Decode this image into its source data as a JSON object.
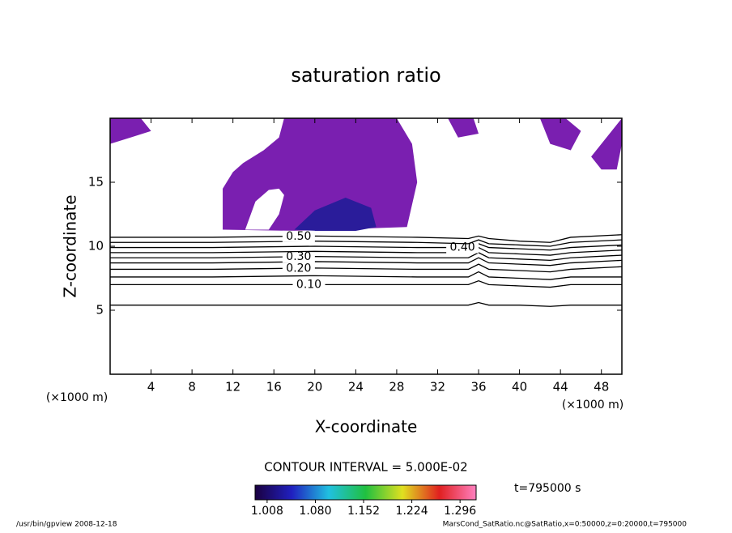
{
  "chart_data": {
    "type": "contour",
    "title": "saturation ratio",
    "xlabel": "X-coordinate",
    "ylabel": "Z-coordinate",
    "x_unit": "(×1000 m)",
    "y_unit": "(×1000 m)",
    "xlim": [
      0,
      50
    ],
    "ylim": [
      0,
      20
    ],
    "xticks": [
      4,
      8,
      12,
      16,
      20,
      24,
      28,
      32,
      36,
      40,
      44,
      48
    ],
    "yticks": [
      5,
      10,
      15
    ],
    "line_color": "#000000",
    "contours": [
      {
        "level": 0.05,
        "x": [
          0,
          10,
          20,
          30,
          35,
          36,
          37,
          40,
          43,
          45,
          50
        ],
        "z": [
          5.4,
          5.4,
          5.4,
          5.4,
          5.4,
          5.6,
          5.4,
          5.4,
          5.3,
          5.4,
          5.4
        ]
      },
      {
        "level": 0.1,
        "label": "0.10",
        "label_x": 18,
        "x": [
          0,
          10,
          20,
          30,
          35,
          36,
          37,
          40,
          43,
          45,
          50
        ],
        "z": [
          7.0,
          7.0,
          7.0,
          7.0,
          7.0,
          7.3,
          7.0,
          6.9,
          6.8,
          7.0,
          7.0
        ]
      },
      {
        "level": 0.15,
        "x": [
          0,
          10,
          20,
          30,
          35,
          36,
          37,
          40,
          43,
          45,
          50
        ],
        "z": [
          7.6,
          7.6,
          7.7,
          7.6,
          7.6,
          8.0,
          7.6,
          7.5,
          7.4,
          7.6,
          7.6
        ]
      },
      {
        "level": 0.2,
        "label": "0.20",
        "label_x": 17,
        "x": [
          0,
          10,
          20,
          30,
          35,
          36,
          37,
          40,
          43,
          45,
          50
        ],
        "z": [
          8.2,
          8.2,
          8.3,
          8.2,
          8.2,
          8.6,
          8.2,
          8.1,
          8.0,
          8.2,
          8.4
        ]
      },
      {
        "level": 0.25,
        "x": [
          0,
          10,
          20,
          30,
          35,
          36,
          37,
          40,
          43,
          45,
          50
        ],
        "z": [
          8.7,
          8.7,
          8.8,
          8.7,
          8.7,
          9.1,
          8.7,
          8.6,
          8.5,
          8.7,
          8.9
        ]
      },
      {
        "level": 0.3,
        "label": "0.30",
        "label_x": 17,
        "x": [
          0,
          10,
          20,
          30,
          35,
          36,
          37,
          40,
          43,
          45,
          50
        ],
        "z": [
          9.1,
          9.1,
          9.2,
          9.1,
          9.1,
          9.5,
          9.1,
          9.0,
          8.9,
          9.1,
          9.3
        ]
      },
      {
        "level": 0.35,
        "x": [
          0,
          10,
          20,
          30,
          35,
          36,
          37,
          40,
          43,
          45,
          50
        ],
        "z": [
          9.5,
          9.5,
          9.6,
          9.5,
          9.5,
          9.9,
          9.5,
          9.4,
          9.3,
          9.5,
          9.7
        ]
      },
      {
        "level": 0.4,
        "label": "0.40",
        "label_x": 33,
        "x": [
          0,
          10,
          20,
          30,
          35,
          36,
          37,
          40,
          43,
          45,
          50
        ],
        "z": [
          9.9,
          9.9,
          10.0,
          9.9,
          9.9,
          10.2,
          9.9,
          9.8,
          9.7,
          9.9,
          10.1
        ]
      },
      {
        "level": 0.45,
        "x": [
          0,
          10,
          20,
          30,
          35,
          36,
          37,
          40,
          43,
          45,
          50
        ],
        "z": [
          10.3,
          10.3,
          10.4,
          10.3,
          10.2,
          10.5,
          10.2,
          10.1,
          10.0,
          10.3,
          10.5
        ]
      },
      {
        "level": 0.5,
        "label": "0.50",
        "label_x": 17,
        "x": [
          0,
          10,
          20,
          30,
          35,
          36,
          37,
          40,
          43,
          45,
          50
        ],
        "z": [
          10.7,
          10.7,
          10.8,
          10.7,
          10.6,
          10.8,
          10.6,
          10.4,
          10.3,
          10.7,
          10.9
        ]
      }
    ],
    "fill_regions": [
      {
        "color": "#7a1fb0",
        "x": [
          11,
          11,
          12,
          13,
          15,
          16.5,
          17,
          28,
          29.5,
          30,
          29,
          18,
          11
        ],
        "z": [
          11.3,
          14.5,
          15.8,
          16.5,
          17.5,
          18.5,
          20,
          20,
          18,
          15,
          11.5,
          11.2,
          11.3
        ]
      },
      {
        "color": "#ffffff",
        "x": [
          13.2,
          14.2,
          15.5,
          16.5,
          17,
          16.5,
          15.5,
          13.2
        ],
        "z": [
          11.3,
          13.5,
          14.4,
          14.5,
          14,
          12.5,
          11.3,
          11.3
        ]
      },
      {
        "color": "#2a1c9a",
        "x": [
          18,
          20,
          23,
          25.5,
          26,
          24,
          20,
          18
        ],
        "z": [
          11.3,
          12.8,
          13.8,
          13,
          11.5,
          11.2,
          11.2,
          11.3
        ]
      },
      {
        "color": "#7a1fb0",
        "x": [
          0,
          0,
          3,
          4,
          2
        ],
        "z": [
          18,
          20,
          20,
          19,
          18.5
        ]
      },
      {
        "color": "#7a1fb0",
        "x": [
          33,
          34,
          36,
          35.5
        ],
        "z": [
          20,
          18.5,
          18.8,
          20
        ]
      },
      {
        "color": "#7a1fb0",
        "x": [
          42,
          43,
          45,
          46,
          44.5
        ],
        "z": [
          20,
          18,
          17.5,
          19,
          20
        ]
      },
      {
        "color": "#7a1fb0",
        "x": [
          47,
          48,
          49.5,
          50,
          50
        ],
        "z": [
          17,
          16,
          16,
          18,
          20
        ]
      }
    ],
    "contour_interval": "CONTOUR INTERVAL = 5.000E-02",
    "time_label": "t=795000 s",
    "colorbar": {
      "lim": [
        0.99,
        1.32
      ],
      "ticks": [
        1.008,
        1.08,
        1.152,
        1.224,
        1.296
      ],
      "tick_labels": [
        "1.008",
        "1.080",
        "1.152",
        "1.224",
        "1.296"
      ],
      "colors": [
        "#1a0040",
        "#2020c0",
        "#20c0e0",
        "#20c040",
        "#e0e020",
        "#e02020",
        "#ff80c0"
      ]
    },
    "footer_left": "/usr/bin/gpview  2008-12-18",
    "footer_right": "MarsCond_SatRatio.nc@SatRatio,x=0:50000,z=0:20000,t=795000"
  }
}
